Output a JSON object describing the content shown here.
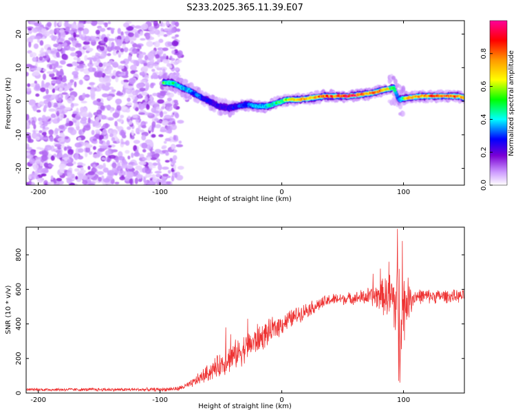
{
  "title": "S233.2025.365.11.39.E07",
  "chart_data": [
    {
      "type": "heatmap",
      "xlabel": "Height of straight line (km)",
      "ylabel": "Frequency (Hz)",
      "xlim": [
        -210,
        150
      ],
      "ylim": [
        -25,
        24
      ],
      "xticks": [
        -200,
        -100,
        0,
        100
      ],
      "yticks": [
        -20,
        -10,
        0,
        10,
        20
      ],
      "colorbar": {
        "label": "Normalized spectral amplitude",
        "range": [
          0.0,
          1.0
        ],
        "ticks": [
          "0.0",
          "0.2",
          "0.4",
          "0.6",
          "0.8"
        ],
        "colors": [
          "#ffffff",
          "#cc99ff",
          "#7a00d4",
          "#0000ff",
          "#00ffff",
          "#00ff00",
          "#ffff00",
          "#ff9900",
          "#ff0000",
          "#ff00aa"
        ]
      },
      "noise_region": {
        "x_range": [
          -210,
          -85
        ],
        "y_range": [
          -25,
          24
        ],
        "typical_amplitude": 0.15
      },
      "ridge": [
        {
          "x": -97,
          "f": 5.5,
          "a": 0.55
        },
        {
          "x": -90,
          "f": 5.5,
          "a": 0.5
        },
        {
          "x": -82,
          "f": 4.0,
          "a": 0.45
        },
        {
          "x": -75,
          "f": 3.0,
          "a": 0.4
        },
        {
          "x": -68,
          "f": 1.5,
          "a": 0.35
        },
        {
          "x": -60,
          "f": 0.0,
          "a": 0.3
        },
        {
          "x": -52,
          "f": -1.5,
          "a": 0.28
        },
        {
          "x": -44,
          "f": -2.0,
          "a": 0.3
        },
        {
          "x": -36,
          "f": -1.5,
          "a": 0.33
        },
        {
          "x": -28,
          "f": -1.0,
          "a": 0.36
        },
        {
          "x": -20,
          "f": -1.5,
          "a": 0.4
        },
        {
          "x": -12,
          "f": -1.5,
          "a": 0.43
        },
        {
          "x": -4,
          "f": -0.5,
          "a": 0.5
        },
        {
          "x": 5,
          "f": 0.5,
          "a": 0.6
        },
        {
          "x": 15,
          "f": 0.5,
          "a": 0.8
        },
        {
          "x": 25,
          "f": 1.0,
          "a": 0.75
        },
        {
          "x": 35,
          "f": 1.5,
          "a": 0.8
        },
        {
          "x": 45,
          "f": 1.5,
          "a": 0.85
        },
        {
          "x": 55,
          "f": 1.5,
          "a": 0.88
        },
        {
          "x": 65,
          "f": 2.0,
          "a": 0.85
        },
        {
          "x": 75,
          "f": 2.5,
          "a": 0.8
        },
        {
          "x": 85,
          "f": 3.5,
          "a": 0.75
        },
        {
          "x": 92,
          "f": 4.0,
          "a": 0.5
        },
        {
          "x": 96,
          "f": 0.5,
          "a": 0.35
        },
        {
          "x": 103,
          "f": 1.0,
          "a": 0.7
        },
        {
          "x": 115,
          "f": 1.5,
          "a": 0.75
        },
        {
          "x": 125,
          "f": 1.5,
          "a": 0.85
        },
        {
          "x": 135,
          "f": 1.5,
          "a": 0.85
        },
        {
          "x": 145,
          "f": 1.5,
          "a": 0.8
        },
        {
          "x": 150,
          "f": 1.0,
          "a": 0.75
        }
      ]
    },
    {
      "type": "line",
      "xlabel": "Height of straight line (km)",
      "ylabel": "SNR (10 * v/v)",
      "xlim": [
        -210,
        150
      ],
      "ylim": [
        0,
        960
      ],
      "xticks": [
        -200,
        -100,
        0,
        100
      ],
      "yticks": [
        0,
        200,
        400,
        600,
        800
      ],
      "color": "#ee3333",
      "envelope": [
        {
          "x": -210,
          "mean": 20,
          "noise": 10
        },
        {
          "x": -100,
          "mean": 20,
          "noise": 12
        },
        {
          "x": -85,
          "mean": 25,
          "noise": 15
        },
        {
          "x": -75,
          "mean": 50,
          "noise": 25
        },
        {
          "x": -60,
          "mean": 120,
          "noise": 60
        },
        {
          "x": -45,
          "mean": 190,
          "noise": 90
        },
        {
          "x": -30,
          "mean": 260,
          "noise": 100
        },
        {
          "x": -15,
          "mean": 330,
          "noise": 90
        },
        {
          "x": 0,
          "mean": 400,
          "noise": 70
        },
        {
          "x": 20,
          "mean": 480,
          "noise": 50
        },
        {
          "x": 40,
          "mean": 540,
          "noise": 40
        },
        {
          "x": 60,
          "mean": 550,
          "noise": 40
        },
        {
          "x": 75,
          "mean": 560,
          "noise": 70
        },
        {
          "x": 85,
          "mean": 560,
          "noise": 130
        },
        {
          "x": 92,
          "mean": 540,
          "noise": 230
        },
        {
          "x": 97,
          "mean": 450,
          "noise": 380
        },
        {
          "x": 103,
          "mean": 540,
          "noise": 150
        },
        {
          "x": 110,
          "mean": 560,
          "noise": 50
        },
        {
          "x": 150,
          "mean": 560,
          "noise": 40
        }
      ],
      "spikes": [
        {
          "x": -46,
          "y": 380
        },
        {
          "x": -42,
          "y": 340
        },
        {
          "x": -28,
          "y": 430
        },
        {
          "x": -20,
          "y": 400
        },
        {
          "x": 75,
          "y": 690
        },
        {
          "x": 81,
          "y": 720
        },
        {
          "x": 88,
          "y": 760
        },
        {
          "x": 95,
          "y": 950
        },
        {
          "x": 97,
          "y": 60
        },
        {
          "x": 99,
          "y": 880
        },
        {
          "x": 96,
          "y": 70
        }
      ]
    }
  ]
}
